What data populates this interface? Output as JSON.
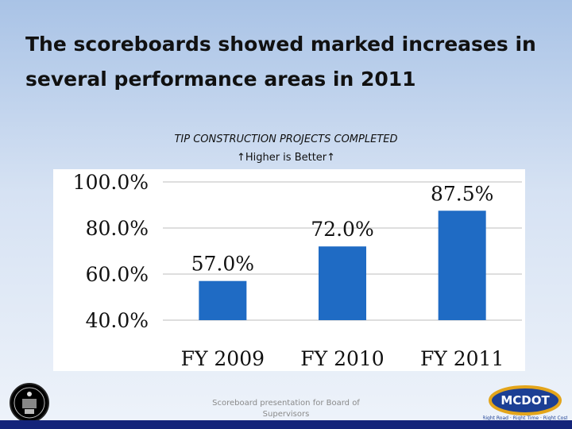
{
  "slide": {
    "title": "The scoreboards  showed marked increases in several performance areas in 2011",
    "footer": "Scoreboard presentation for Board of Supervisors"
  },
  "logos": {
    "left": "county-seal",
    "right": {
      "name": "MCDOT",
      "tagline": "Right Road · Right Time · Right Cost"
    }
  },
  "colors": {
    "bar": "#1f6bc4",
    "bottom_bar": "#14247a",
    "mcdot_gold": "#e3a51b",
    "mcdot_blue": "#1c3f94"
  },
  "chart_data": {
    "type": "bar",
    "title": "TIP CONSTRUCTION PROJECTS COMPLETED",
    "subtitle": "↑Higher is Better↑",
    "categories": [
      "FY 2009",
      "FY 2010",
      "FY 2011"
    ],
    "values": [
      57.0,
      72.0,
      87.5
    ],
    "data_labels": [
      "57.0%",
      "72.0%",
      "87.5%"
    ],
    "ylim": [
      40,
      100
    ],
    "yticks": [
      40,
      60,
      80,
      100
    ],
    "ytick_labels": [
      "40.0%",
      "60.0%",
      "80.0%",
      "100.0%"
    ],
    "grid": true,
    "legend": "none"
  }
}
